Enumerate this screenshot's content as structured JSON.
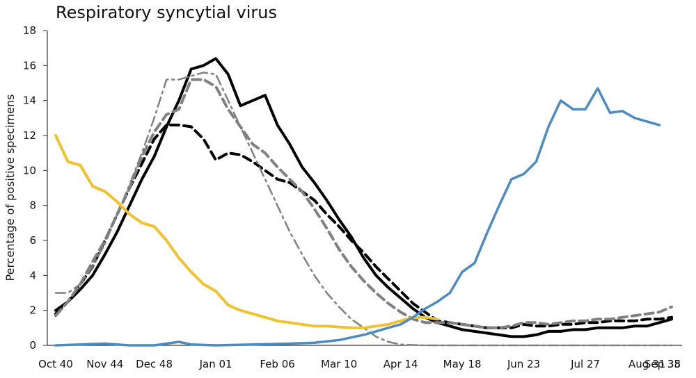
{
  "chart_data": {
    "type": "line",
    "title": "Respiratory syncytial virus",
    "ylabel": "Percentage of positive specimens",
    "xlabel": "",
    "x_range": [
      0,
      50
    ],
    "ylim": [
      0,
      18
    ],
    "y_ticks": [
      0,
      2,
      4,
      6,
      8,
      10,
      12,
      14,
      16,
      18
    ],
    "x_tick_labels": [
      {
        "x": 0,
        "label": "Oct 40"
      },
      {
        "x": 4,
        "label": "Nov 44"
      },
      {
        "x": 8,
        "label": "Dec 48"
      },
      {
        "x": 13,
        "label": "Jan 01"
      },
      {
        "x": 18,
        "label": "Feb 06"
      },
      {
        "x": 23,
        "label": "Mar 10"
      },
      {
        "x": 28,
        "label": "Apr 14"
      },
      {
        "x": 33,
        "label": "May 18"
      },
      {
        "x": 38,
        "label": "Jun 23"
      },
      {
        "x": 43,
        "label": "Jul 27"
      },
      {
        "x": 48,
        "label": "Aug 31"
      },
      {
        "x": 52,
        "label": "Sep 35"
      },
      {
        "x": 55,
        "label": "38"
      }
    ],
    "grid": false,
    "legend": "none",
    "series": [
      {
        "color": "#000000",
        "style": "solid",
        "width": 4,
        "points": [
          [
            0,
            2.0
          ],
          [
            1,
            2.5
          ],
          [
            2,
            3.2
          ],
          [
            3,
            4.0
          ],
          [
            4,
            5.2
          ],
          [
            5,
            6.5
          ],
          [
            6,
            8.0
          ],
          [
            7,
            9.5
          ],
          [
            8,
            10.8
          ],
          [
            9,
            12.5
          ],
          [
            10,
            14.0
          ],
          [
            11,
            15.8
          ],
          [
            12,
            16.0
          ],
          [
            13,
            16.4
          ],
          [
            14,
            15.5
          ],
          [
            15,
            13.7
          ],
          [
            16,
            14.0
          ],
          [
            17,
            14.3
          ],
          [
            18,
            12.6
          ],
          [
            19,
            11.5
          ],
          [
            20,
            10.2
          ],
          [
            21,
            9.3
          ],
          [
            22,
            8.3
          ],
          [
            23,
            7.2
          ],
          [
            24,
            6.2
          ],
          [
            25,
            5.0
          ],
          [
            26,
            4.0
          ],
          [
            27,
            3.3
          ],
          [
            28,
            2.7
          ],
          [
            29,
            2.1
          ],
          [
            30,
            1.6
          ],
          [
            31,
            1.3
          ],
          [
            32,
            1.1
          ],
          [
            33,
            0.9
          ],
          [
            34,
            0.8
          ],
          [
            35,
            0.7
          ],
          [
            36,
            0.6
          ],
          [
            37,
            0.5
          ],
          [
            38,
            0.5
          ],
          [
            39,
            0.6
          ],
          [
            40,
            0.8
          ],
          [
            41,
            0.8
          ],
          [
            42,
            0.9
          ],
          [
            43,
            0.9
          ],
          [
            44,
            1.0
          ],
          [
            45,
            1.0
          ],
          [
            46,
            1.0
          ],
          [
            47,
            1.1
          ],
          [
            48,
            1.1
          ],
          [
            49,
            1.3
          ],
          [
            50,
            1.5
          ]
        ]
      },
      {
        "color": "#000000",
        "style": "dashed",
        "width": 4,
        "points": [
          [
            0,
            1.8
          ],
          [
            1,
            2.5
          ],
          [
            2,
            3.5
          ],
          [
            3,
            4.5
          ],
          [
            4,
            6.0
          ],
          [
            5,
            7.5
          ],
          [
            6,
            9.0
          ],
          [
            7,
            10.4
          ],
          [
            8,
            11.8
          ],
          [
            9,
            12.6
          ],
          [
            10,
            12.6
          ],
          [
            11,
            12.5
          ],
          [
            12,
            11.8
          ],
          [
            13,
            10.6
          ],
          [
            14,
            11.0
          ],
          [
            15,
            10.9
          ],
          [
            16,
            10.5
          ],
          [
            17,
            10.0
          ],
          [
            18,
            9.5
          ],
          [
            19,
            9.3
          ],
          [
            20,
            8.8
          ],
          [
            21,
            8.3
          ],
          [
            22,
            7.5
          ],
          [
            23,
            6.8
          ],
          [
            24,
            6.0
          ],
          [
            25,
            5.3
          ],
          [
            26,
            4.5
          ],
          [
            27,
            3.8
          ],
          [
            28,
            3.1
          ],
          [
            29,
            2.4
          ],
          [
            30,
            1.9
          ],
          [
            31,
            1.4
          ],
          [
            32,
            1.3
          ],
          [
            33,
            1.2
          ],
          [
            34,
            1.1
          ],
          [
            35,
            1.0
          ],
          [
            36,
            1.0
          ],
          [
            37,
            1.0
          ],
          [
            38,
            1.2
          ],
          [
            39,
            1.1
          ],
          [
            40,
            1.1
          ],
          [
            41,
            1.2
          ],
          [
            42,
            1.2
          ],
          [
            43,
            1.3
          ],
          [
            44,
            1.3
          ],
          [
            45,
            1.4
          ],
          [
            46,
            1.4
          ],
          [
            47,
            1.4
          ],
          [
            48,
            1.5
          ],
          [
            49,
            1.5
          ],
          [
            50,
            1.6
          ]
        ]
      },
      {
        "color": "#808080",
        "style": "dashed",
        "width": 4,
        "points": [
          [
            0,
            1.7
          ],
          [
            1,
            2.5
          ],
          [
            2,
            3.5
          ],
          [
            3,
            4.8
          ],
          [
            4,
            6.0
          ],
          [
            5,
            7.5
          ],
          [
            6,
            9.0
          ],
          [
            7,
            10.8
          ],
          [
            8,
            12.2
          ],
          [
            9,
            13.2
          ],
          [
            10,
            13.5
          ],
          [
            11,
            15.2
          ],
          [
            12,
            15.2
          ],
          [
            13,
            14.8
          ],
          [
            14,
            13.5
          ],
          [
            15,
            12.5
          ],
          [
            16,
            11.5
          ],
          [
            17,
            11.0
          ],
          [
            18,
            10.2
          ],
          [
            19,
            9.5
          ],
          [
            20,
            8.8
          ],
          [
            21,
            7.8
          ],
          [
            22,
            6.7
          ],
          [
            23,
            5.5
          ],
          [
            24,
            4.5
          ],
          [
            25,
            3.7
          ],
          [
            26,
            3.0
          ],
          [
            27,
            2.4
          ],
          [
            28,
            1.9
          ],
          [
            29,
            1.5
          ],
          [
            30,
            1.3
          ],
          [
            31,
            1.3
          ],
          [
            32,
            1.3
          ],
          [
            33,
            1.2
          ],
          [
            34,
            1.1
          ],
          [
            35,
            1.0
          ],
          [
            36,
            1.0
          ],
          [
            37,
            1.1
          ],
          [
            38,
            1.3
          ],
          [
            39,
            1.3
          ],
          [
            40,
            1.2
          ],
          [
            41,
            1.3
          ],
          [
            42,
            1.4
          ],
          [
            43,
            1.4
          ],
          [
            44,
            1.5
          ],
          [
            45,
            1.5
          ],
          [
            46,
            1.6
          ],
          [
            47,
            1.7
          ],
          [
            48,
            1.8
          ],
          [
            49,
            1.9
          ],
          [
            50,
            2.2
          ]
        ]
      },
      {
        "color": "#808080",
        "style": "dashdot",
        "width": 2.5,
        "points": [
          [
            0,
            3.0
          ],
          [
            1,
            3.0
          ],
          [
            2,
            3.5
          ],
          [
            3,
            4.5
          ],
          [
            4,
            5.8
          ],
          [
            5,
            7.5
          ],
          [
            6,
            9.2
          ],
          [
            7,
            11.0
          ],
          [
            8,
            13.0
          ],
          [
            9,
            15.2
          ],
          [
            10,
            15.2
          ],
          [
            11,
            15.4
          ],
          [
            12,
            15.6
          ],
          [
            13,
            15.5
          ],
          [
            14,
            14.0
          ],
          [
            15,
            12.5
          ],
          [
            16,
            11.0
          ],
          [
            17,
            9.5
          ],
          [
            18,
            8.0
          ],
          [
            19,
            6.5
          ],
          [
            20,
            5.2
          ],
          [
            21,
            4.0
          ],
          [
            22,
            3.0
          ],
          [
            23,
            2.2
          ],
          [
            24,
            1.5
          ],
          [
            25,
            1.0
          ],
          [
            26,
            0.5
          ],
          [
            27,
            0.2
          ],
          [
            28,
            0.05
          ],
          [
            29,
            0.02
          ],
          [
            30,
            0.0
          ],
          [
            35,
            0.0
          ],
          [
            40,
            0.0
          ],
          [
            45,
            0.0
          ],
          [
            50,
            0.0
          ]
        ]
      },
      {
        "color": "#F2C12E",
        "style": "solid",
        "width": 4,
        "points": [
          [
            0,
            12.0
          ],
          [
            1,
            10.5
          ],
          [
            2,
            10.3
          ],
          [
            3,
            9.1
          ],
          [
            4,
            8.8
          ],
          [
            5,
            8.2
          ],
          [
            6,
            7.5
          ],
          [
            7,
            7.0
          ],
          [
            8,
            6.8
          ],
          [
            9,
            6.0
          ],
          [
            10,
            5.0
          ],
          [
            11,
            4.2
          ],
          [
            12,
            3.5
          ],
          [
            13,
            3.1
          ],
          [
            14,
            2.3
          ],
          [
            15,
            2.0
          ],
          [
            16,
            1.8
          ],
          [
            17,
            1.6
          ],
          [
            18,
            1.4
          ],
          [
            19,
            1.3
          ],
          [
            20,
            1.2
          ],
          [
            21,
            1.1
          ],
          [
            22,
            1.1
          ],
          [
            23,
            1.05
          ],
          [
            24,
            1.0
          ],
          [
            25,
            1.0
          ],
          [
            26,
            1.1
          ],
          [
            27,
            1.2
          ],
          [
            28,
            1.4
          ],
          [
            29,
            1.6
          ],
          [
            30,
            1.6
          ],
          [
            31,
            1.5
          ]
        ]
      },
      {
        "color": "#4A8BC4",
        "style": "solid",
        "width": 3.5,
        "points": [
          [
            0,
            0.0
          ],
          [
            2,
            0.05
          ],
          [
            4,
            0.1
          ],
          [
            6,
            0.0
          ],
          [
            8,
            0.0
          ],
          [
            9,
            0.1
          ],
          [
            10,
            0.2
          ],
          [
            11,
            0.05
          ],
          [
            13,
            0.0
          ],
          [
            16,
            0.05
          ],
          [
            19,
            0.1
          ],
          [
            21,
            0.15
          ],
          [
            23,
            0.3
          ],
          [
            25,
            0.6
          ],
          [
            26,
            0.8
          ],
          [
            27,
            1.0
          ],
          [
            28,
            1.2
          ],
          [
            29,
            1.6
          ],
          [
            30,
            2.1
          ],
          [
            31,
            2.5
          ],
          [
            32,
            3.0
          ],
          [
            33,
            4.2
          ],
          [
            34,
            4.7
          ],
          [
            35,
            6.4
          ],
          [
            36,
            8.0
          ],
          [
            37,
            9.5
          ],
          [
            38,
            9.8
          ],
          [
            39,
            10.5
          ],
          [
            40,
            12.5
          ],
          [
            41,
            14.0
          ],
          [
            42,
            13.5
          ],
          [
            43,
            13.5
          ],
          [
            44,
            14.7
          ],
          [
            45,
            13.3
          ],
          [
            46,
            13.4
          ],
          [
            47,
            13.0
          ],
          [
            48,
            12.8
          ],
          [
            49,
            12.6
          ]
        ]
      }
    ]
  }
}
